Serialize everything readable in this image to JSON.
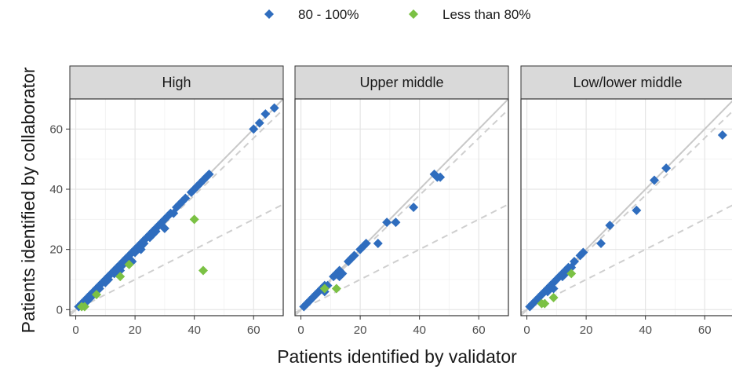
{
  "chart_data": {
    "type": "scatter",
    "xlabel": "Patients identified by validator",
    "ylabel": "Patients identified by collaborator",
    "xlim": [
      -2,
      70
    ],
    "ylim": [
      -2,
      70
    ],
    "x_ticks": [
      0,
      20,
      40,
      60
    ],
    "y_ticks": [
      0,
      20,
      40,
      60
    ],
    "tick_labels": {
      "t0": "0",
      "t20": "20",
      "t40": "40",
      "t60": "60"
    },
    "grid": true,
    "legend": {
      "position": "top",
      "items": [
        {
          "label": "80 - 100%",
          "color": "#2F6DBE",
          "shape": "diamond"
        },
        {
          "label": "Less than 80%",
          "color": "#7BC144",
          "shape": "diamond"
        }
      ]
    },
    "reference_lines": [
      {
        "slope": 1,
        "style": "solid",
        "color": "#c8c8c8"
      },
      {
        "slope": 0.95,
        "style": "dashed",
        "color": "#cfcfcf"
      },
      {
        "slope": 0.5,
        "style": "dashed",
        "color": "#cfcfcf"
      }
    ],
    "panels": [
      {
        "label": "High",
        "series": [
          {
            "name": "80 - 100%",
            "points": [
              [
                1,
                1
              ],
              [
                2,
                2
              ],
              [
                3,
                3
              ],
              [
                4,
                3
              ],
              [
                4,
                4
              ],
              [
                5,
                5
              ],
              [
                6,
                5
              ],
              [
                6,
                6
              ],
              [
                7,
                7
              ],
              [
                8,
                7
              ],
              [
                8,
                8
              ],
              [
                9,
                9
              ],
              [
                10,
                9
              ],
              [
                10,
                10
              ],
              [
                11,
                10
              ],
              [
                11,
                11
              ],
              [
                12,
                12
              ],
              [
                13,
                12
              ],
              [
                13,
                13
              ],
              [
                14,
                14
              ],
              [
                15,
                14
              ],
              [
                15,
                15
              ],
              [
                16,
                15
              ],
              [
                16,
                16
              ],
              [
                17,
                16
              ],
              [
                17,
                17
              ],
              [
                18,
                17
              ],
              [
                18,
                18
              ],
              [
                19,
                19
              ],
              [
                20,
                19
              ],
              [
                20,
                20
              ],
              [
                21,
                21
              ],
              [
                22,
                21
              ],
              [
                22,
                22
              ],
              [
                23,
                22
              ],
              [
                23,
                23
              ],
              [
                24,
                24
              ],
              [
                25,
                24
              ],
              [
                25,
                25
              ],
              [
                26,
                26
              ],
              [
                27,
                26
              ],
              [
                27,
                27
              ],
              [
                28,
                28
              ],
              [
                29,
                28
              ],
              [
                29,
                29
              ],
              [
                30,
                30
              ],
              [
                31,
                31
              ],
              [
                32,
                32
              ],
              [
                33,
                32
              ],
              [
                34,
                34
              ],
              [
                35,
                35
              ],
              [
                36,
                36
              ],
              [
                37,
                37
              ],
              [
                39,
                39
              ],
              [
                40,
                40
              ],
              [
                41,
                41
              ],
              [
                42,
                42
              ],
              [
                43,
                43
              ],
              [
                44,
                44
              ],
              [
                45,
                45
              ],
              [
                60,
                60
              ],
              [
                62,
                62
              ],
              [
                64,
                65
              ],
              [
                67,
                67
              ],
              [
                14,
                12
              ],
              [
                15,
                13
              ],
              [
                19,
                16
              ],
              [
                22,
                20
              ],
              [
                26,
                25
              ],
              [
                30,
                27
              ],
              [
                5,
                4
              ]
            ]
          },
          {
            "name": "Less than 80%",
            "points": [
              [
                2,
                1
              ],
              [
                3,
                1
              ],
              [
                7,
                5
              ],
              [
                15,
                11
              ],
              [
                18,
                15
              ],
              [
                40,
                30
              ],
              [
                43,
                13
              ]
            ]
          }
        ]
      },
      {
        "label": "Upper middle",
        "series": [
          {
            "name": "80 - 100%",
            "points": [
              [
                1,
                1
              ],
              [
                2,
                2
              ],
              [
                3,
                3
              ],
              [
                4,
                4
              ],
              [
                5,
                5
              ],
              [
                6,
                6
              ],
              [
                7,
                7
              ],
              [
                8,
                8
              ],
              [
                9,
                8
              ],
              [
                11,
                11
              ],
              [
                12,
                12
              ],
              [
                13,
                13
              ],
              [
                14,
                12
              ],
              [
                16,
                16
              ],
              [
                17,
                17
              ],
              [
                18,
                18
              ],
              [
                20,
                20
              ],
              [
                21,
                21
              ],
              [
                22,
                22
              ],
              [
                26,
                22
              ],
              [
                29,
                29
              ],
              [
                32,
                29
              ],
              [
                38,
                34
              ],
              [
                45,
                45
              ],
              [
                47,
                44
              ],
              [
                46,
                44
              ],
              [
                8,
                6
              ],
              [
                13,
                11
              ]
            ]
          },
          {
            "name": "Less than 80%",
            "points": [
              [
                8,
                7
              ],
              [
                12,
                7
              ]
            ]
          }
        ]
      },
      {
        "label": "Low/lower middle",
        "series": [
          {
            "name": "80 - 100%",
            "points": [
              [
                1,
                1
              ],
              [
                2,
                2
              ],
              [
                3,
                3
              ],
              [
                4,
                4
              ],
              [
                5,
                5
              ],
              [
                6,
                6
              ],
              [
                7,
                7
              ],
              [
                8,
                8
              ],
              [
                9,
                9
              ],
              [
                10,
                10
              ],
              [
                11,
                11
              ],
              [
                12,
                12
              ],
              [
                13,
                13
              ],
              [
                14,
                14
              ],
              [
                15,
                14
              ],
              [
                16,
                16
              ],
              [
                18,
                18
              ],
              [
                19,
                19
              ],
              [
                25,
                22
              ],
              [
                28,
                28
              ],
              [
                37,
                33
              ],
              [
                43,
                43
              ],
              [
                47,
                47
              ],
              [
                66,
                58
              ],
              [
                7,
                6
              ],
              [
                9,
                7
              ],
              [
                12,
                11
              ],
              [
                13,
                12
              ]
            ]
          },
          {
            "name": "Less than 80%",
            "points": [
              [
                5,
                2
              ],
              [
                6,
                2
              ],
              [
                9,
                4
              ],
              [
                15,
                12
              ]
            ]
          }
        ]
      }
    ]
  }
}
